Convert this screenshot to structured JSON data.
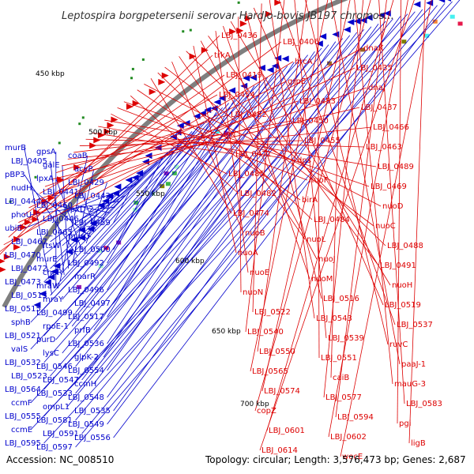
{
  "title": "Leptospira borgpetersenii serovar Hardjo-bovis JB197 chromos...",
  "footer": {
    "accession": "Accession: NC_008510",
    "topology": "Topology: circular; Length: 3,576,473 bp; Genes: 2,687"
  },
  "colors": {
    "forward": "#dd0000",
    "reverse": "#0000cc",
    "backbone": "#7f7f7f",
    "tick": "#228b22",
    "text": "#000000"
  },
  "scale_labels": [
    "450 kbp",
    "500 kbp",
    "550 kbp",
    "600 kbp",
    "650 kbp",
    "700 kbp"
  ],
  "blue_labels": [
    "murB",
    "gpsA",
    "coaB",
    "LBJ_0405",
    "galE",
    "acyP",
    "pBP3",
    "lpxA",
    "LBJ_0429",
    "nudH",
    "LBJ_0441",
    "LBJ_0442",
    "LBJ_0444",
    "LBJ_0460",
    "lpxD-2",
    "phoU",
    "LBJ_0446",
    "LBJ_0459",
    "ubiE",
    "LBJ_0465",
    "murG",
    "LBJ_0467",
    "ftsW",
    "LBJ_0500",
    "LBJ_0470",
    "murE",
    "LBJ_0492",
    "LBJ_0472",
    "cheR",
    "marR",
    "LBJ_0473",
    "mraW",
    "LBJ_0496",
    "LBJ_0513",
    "mraY",
    "LBJ_0497",
    "LBJ_0515",
    "LBJ_0499",
    "LBJ_0517",
    "sphB",
    "rpoE-1",
    "prfB",
    "LBJ_0521",
    "purD",
    "LBJ_0536",
    "valS",
    "lysC",
    "glpK-2",
    "LBJ_0532",
    "LBJ_0546",
    "LBJ_0554",
    "LBJ_0523",
    "LBJ_0547",
    "ccmH",
    "LBJ_0564",
    "LBJ_0533",
    "LBJ_0548",
    "ccmF",
    "ompL1",
    "LBJ_0535",
    "LBJ_0555",
    "LBJ_0581",
    "LBJ_0549",
    "ccmE",
    "LBJ_0591",
    "LBJ_0556",
    "LBJ_0595",
    "LBJ_0597"
  ],
  "red_labels": [
    "LBJ_0436",
    "LBJ_0406",
    "dnaK",
    "trkA",
    "hrcA",
    "LBJ_0435",
    "LBJ_0419",
    "grpE",
    "dnaJ",
    "LBJ_0454",
    "LBJ_0453",
    "LBJ_0437",
    "LBJ_0452",
    "LBJ_0450",
    "LBJ_0466",
    "lon",
    "LBJ_0455",
    "LBJ_0463",
    "LBJ_0471",
    "dps",
    "LBJ_0489",
    "LBJ_0485",
    "nuoF",
    "LBJ_0469",
    "LBJ_0482",
    "birA",
    "nuoD",
    "LBJ_0474",
    "LBJ_0484",
    "nuoC",
    "nuoB",
    "nuoL",
    "LBJ_0488",
    "nuoA",
    "nuoJ",
    "LBJ_0491",
    "nuoE",
    "nuoM",
    "nuoH",
    "nuoN",
    "LBJ_0516",
    "LBJ_0519",
    "LBJ_0522",
    "LBJ_0543",
    "LBJ_0537",
    "LBJ_0540",
    "LBJ_0539",
    "ruvC",
    "LBJ_0550",
    "LBJ_0551",
    "paaJ-1",
    "LBJ_0565",
    "caiB",
    "mauG-3",
    "LBJ_0574",
    "LBJ_0577",
    "LBJ_0583",
    "copZ",
    "LBJ_0594",
    "pgi",
    "LBJ_0601",
    "LBJ_0602",
    "ligB",
    "LBJ_0614",
    "wecE"
  ]
}
